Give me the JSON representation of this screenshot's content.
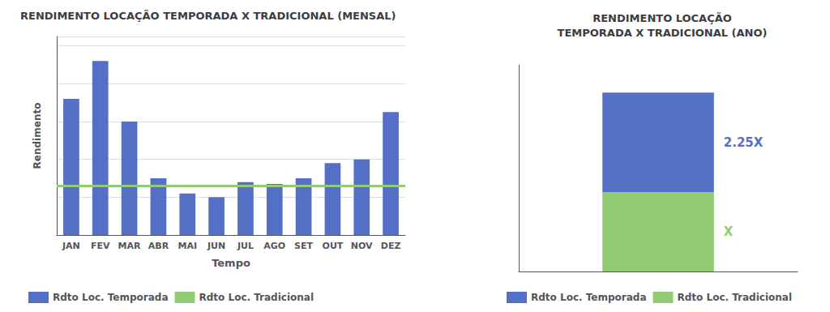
{
  "chart_data": [
    {
      "type": "bar",
      "title": "RENDIMENTO LOCAÇÃO TEMPORADA X TRADICIONAL (MENSAL)",
      "x_label": "Tempo",
      "y_label": "Rendimento",
      "categories": [
        "JAN",
        "FEV",
        "MAR",
        "ABR",
        "MAI",
        "JUN",
        "JUL",
        "AGO",
        "SET",
        "OUT",
        "NOV",
        "DEZ"
      ],
      "series": [
        {
          "name": "Rdto Loc. Temporada",
          "values": [
            0.72,
            0.92,
            0.6,
            0.3,
            0.22,
            0.2,
            0.28,
            0.27,
            0.3,
            0.38,
            0.4,
            0.65
          ]
        }
      ],
      "hline": {
        "name": "Rdto Loc. Tradicional",
        "value": 0.26
      },
      "ylim": [
        0,
        1.05
      ],
      "yticks": [
        0,
        0.2,
        0.4,
        0.6,
        0.8,
        1.0
      ],
      "grid": true,
      "tick_labels": "x",
      "legend": "lower left"
    },
    {
      "type": "bar",
      "title": "RENDIMENTO LOCAÇÃO\nTEMPORADA X TRADICIONAL (ANO)",
      "categories": [
        null
      ],
      "series": [
        {
          "name": "Rdto Loc. Tradicional",
          "values": [
            1.0
          ]
        },
        {
          "name": "Rdto Loc. Temporada",
          "values": [
            1.25
          ]
        }
      ],
      "stacked": true,
      "ylim": [
        0,
        2.6
      ],
      "tick_labels": false,
      "annotations": [
        {
          "text": "2.25X",
          "series": "Rdto Loc. Temporada"
        },
        {
          "text": "X",
          "series": "Rdto Loc. Tradicional"
        }
      ],
      "legend": "lower left"
    }
  ]
}
